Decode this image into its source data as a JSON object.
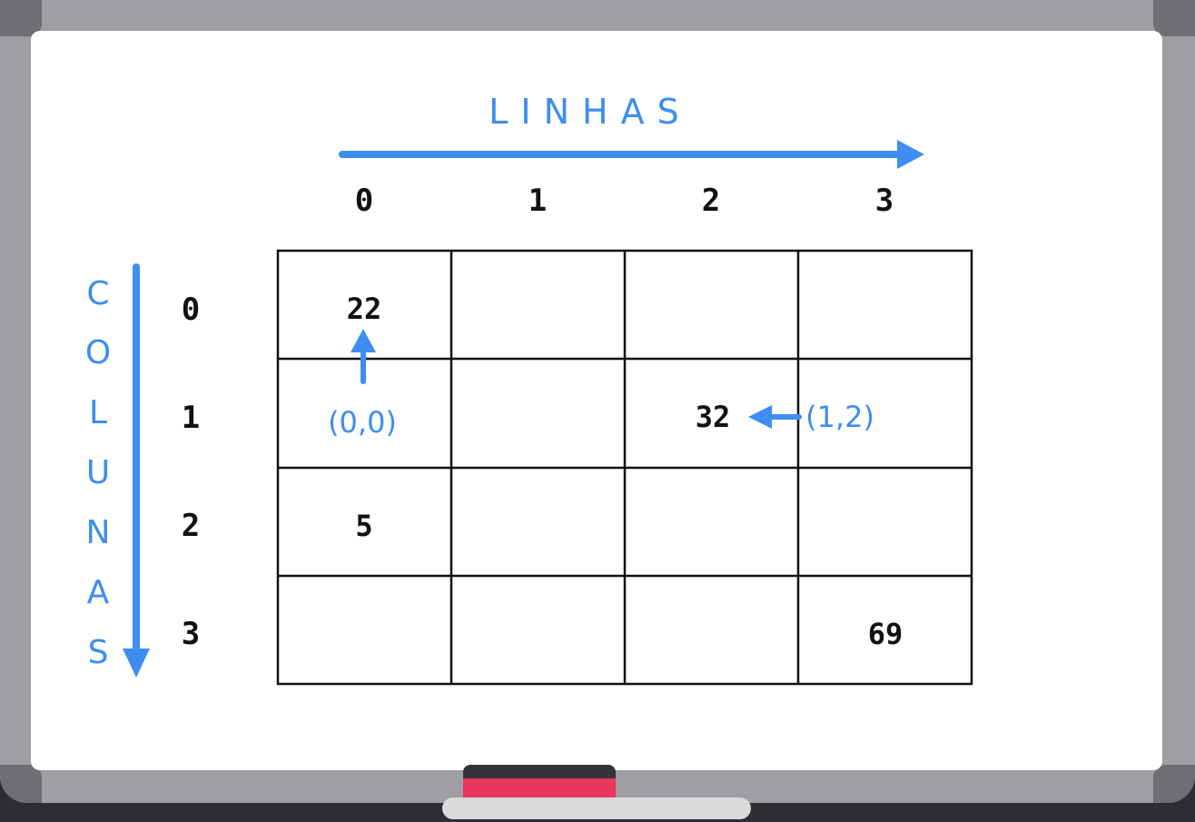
{
  "labels": {
    "rows_axis": "LINHAS",
    "cols_axis": [
      "C",
      "O",
      "L",
      "U",
      "N",
      "A",
      "S"
    ]
  },
  "column_indices": [
    "0",
    "1",
    "2",
    "3"
  ],
  "row_indices": [
    "0",
    "1",
    "2",
    "3"
  ],
  "matrix": [
    [
      "22",
      "",
      "",
      ""
    ],
    [
      "",
      "",
      "32",
      ""
    ],
    [
      "5",
      "",
      "",
      ""
    ],
    [
      "",
      "",
      "",
      "69"
    ]
  ],
  "annotations": {
    "origin_label": "(0,0)",
    "point_label": "(1,2)"
  },
  "colors": {
    "annotation": "#3d8ef0",
    "grid": "#111111",
    "marker_accent": "#e8365d"
  }
}
